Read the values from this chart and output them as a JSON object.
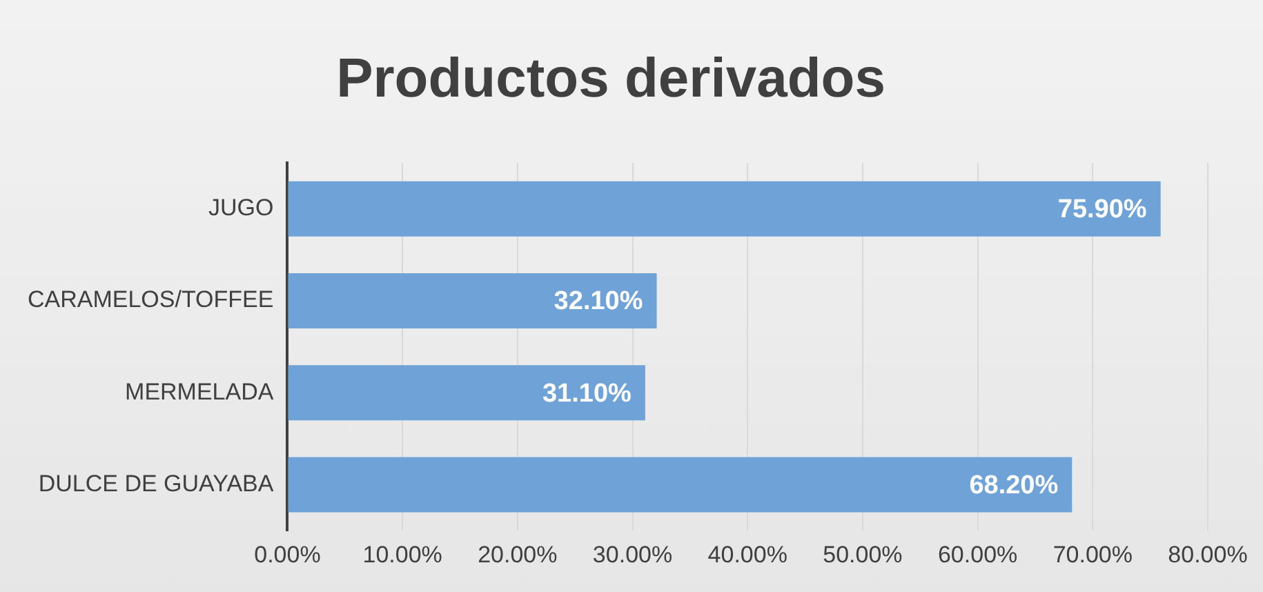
{
  "chart_data": {
    "type": "bar",
    "orientation": "horizontal",
    "title": "Productos derivados",
    "categories": [
      "JUGO",
      "CARAMELOS/TOFFEE",
      "MERMELADA",
      "DULCE DE GUAYABA"
    ],
    "values": [
      75.9,
      32.1,
      31.1,
      68.2
    ],
    "value_labels": [
      "75.90%",
      "32.10%",
      "31.10%",
      "68.20%"
    ],
    "color": "#6fa3d8",
    "xlim": [
      0,
      80
    ],
    "xticks": [
      {
        "value": 0,
        "label": "0.00%"
      },
      {
        "value": 10,
        "label": "10.00%"
      },
      {
        "value": 20,
        "label": "20.00%"
      },
      {
        "value": 30,
        "label": "30.00%"
      },
      {
        "value": 40,
        "label": "40.00%"
      },
      {
        "value": 50,
        "label": "50.00%"
      },
      {
        "value": 60,
        "label": "60.00%"
      },
      {
        "value": 70,
        "label": "70.00%"
      },
      {
        "value": 80,
        "label": "80.00%"
      }
    ],
    "grid": "x",
    "legend": false
  }
}
